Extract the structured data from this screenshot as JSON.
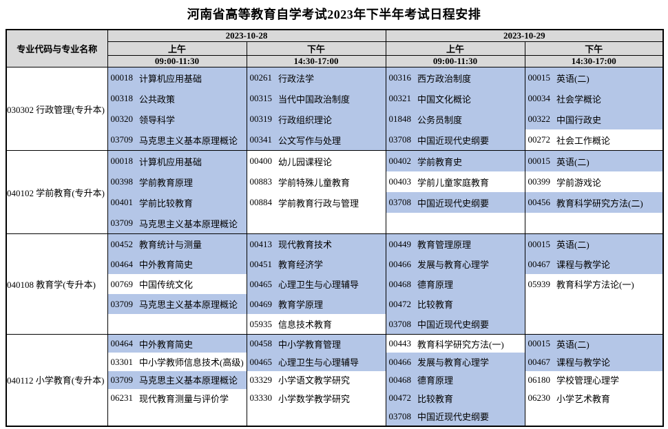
{
  "title": "河南省高等教育自学考试2023年下半年考试日程安排",
  "colors": {
    "highlight": "#b4c6e7",
    "header_bg": "#d9d9d9",
    "border": "#000000"
  },
  "table": {
    "corner_header": "专业代码与专业名称",
    "dates": [
      {
        "date": "2023-10-28",
        "sessions": [
          {
            "label": "上午",
            "time": "09:00-11:30"
          },
          {
            "label": "下午",
            "time": "14:30-17:00"
          }
        ]
      },
      {
        "date": "2023-10-29",
        "sessions": [
          {
            "label": "上午",
            "time": "09:00-11:30"
          },
          {
            "label": "下午",
            "time": "14:30-17:00"
          }
        ]
      }
    ],
    "rows": [
      {
        "major": "030302 行政管理(专升本)",
        "cells": [
          [
            {
              "code": "00018",
              "name": "计算机应用基础",
              "highlighted": true
            },
            {
              "code": "00318",
              "name": "公共政策",
              "highlighted": true
            },
            {
              "code": "00320",
              "name": "领导科学",
              "highlighted": true
            },
            {
              "code": "03709",
              "name": "马克思主义基本原理概论",
              "highlighted": true
            }
          ],
          [
            {
              "code": "00261",
              "name": "行政法学",
              "highlighted": true
            },
            {
              "code": "00315",
              "name": "当代中国政治制度",
              "highlighted": true
            },
            {
              "code": "00319",
              "name": "行政组织理论",
              "highlighted": true
            },
            {
              "code": "00341",
              "name": "公文写作与处理",
              "highlighted": true
            }
          ],
          [
            {
              "code": "00316",
              "name": "西方政治制度",
              "highlighted": true
            },
            {
              "code": "00321",
              "name": "中国文化概论",
              "highlighted": true
            },
            {
              "code": "01848",
              "name": "公务员制度",
              "highlighted": true
            },
            {
              "code": "03708",
              "name": "中国近现代史纲要",
              "highlighted": true
            }
          ],
          [
            {
              "code": "00015",
              "name": "英语(二)",
              "highlighted": true
            },
            {
              "code": "00034",
              "name": "社会学概论",
              "highlighted": true
            },
            {
              "code": "00322",
              "name": "中国行政史",
              "highlighted": true
            },
            {
              "code": "00272",
              "name": "社会工作概论",
              "highlighted": false
            }
          ]
        ]
      },
      {
        "major": "040102 学前教育(专升本)",
        "cells": [
          [
            {
              "code": "00018",
              "name": "计算机应用基础",
              "highlighted": true
            },
            {
              "code": "00398",
              "name": "学前教育原理",
              "highlighted": true
            },
            {
              "code": "00401",
              "name": "学前比较教育",
              "highlighted": true
            },
            {
              "code": "03709",
              "name": "马克思主义基本原理概论",
              "highlighted": true
            }
          ],
          [
            {
              "code": "00400",
              "name": "幼儿园课程论",
              "highlighted": false
            },
            {
              "code": "00883",
              "name": "学前特殊儿童教育",
              "highlighted": false
            },
            {
              "code": "00884",
              "name": "学前教育行政与管理",
              "highlighted": false
            }
          ],
          [
            {
              "code": "00402",
              "name": "学前教育史",
              "highlighted": true
            },
            {
              "code": "00403",
              "name": "学前儿童家庭教育",
              "highlighted": false
            },
            {
              "code": "03708",
              "name": "中国近现代史纲要",
              "highlighted": true
            }
          ],
          [
            {
              "code": "00015",
              "name": "英语(二)",
              "highlighted": true
            },
            {
              "code": "00399",
              "name": "学前游戏论",
              "highlighted": false
            },
            {
              "code": "00456",
              "name": "教育科学研究方法(二)",
              "highlighted": true
            }
          ]
        ]
      },
      {
        "major": "040108 教育学(专升本)",
        "cells": [
          [
            {
              "code": "00452",
              "name": "教育统计与测量",
              "highlighted": true
            },
            {
              "code": "00464",
              "name": "中外教育简史",
              "highlighted": true
            },
            {
              "code": "00769",
              "name": "中国传统文化",
              "highlighted": false
            },
            {
              "code": "03709",
              "name": "马克思主义基本原理概论",
              "highlighted": true
            }
          ],
          [
            {
              "code": "00413",
              "name": "现代教育技术",
              "highlighted": true
            },
            {
              "code": "00451",
              "name": "教育经济学",
              "highlighted": true
            },
            {
              "code": "00465",
              "name": "心理卫生与心理辅导",
              "highlighted": true
            },
            {
              "code": "00469",
              "name": "教育学原理",
              "highlighted": true
            },
            {
              "code": "05935",
              "name": "信息技术教育",
              "highlighted": false
            }
          ],
          [
            {
              "code": "00449",
              "name": "教育管理原理",
              "highlighted": true
            },
            {
              "code": "00466",
              "name": "发展与教育心理学",
              "highlighted": true
            },
            {
              "code": "00468",
              "name": "德育原理",
              "highlighted": true
            },
            {
              "code": "00472",
              "name": "比较教育",
              "highlighted": true
            },
            {
              "code": "03708",
              "name": "中国近现代史纲要",
              "highlighted": true
            }
          ],
          [
            {
              "code": "00015",
              "name": "英语(二)",
              "highlighted": true
            },
            {
              "code": "00467",
              "name": "课程与教学论",
              "highlighted": true
            },
            {
              "code": "05939",
              "name": "教育科学方法论(一)",
              "highlighted": false
            }
          ]
        ]
      },
      {
        "major": "040112 小学教育(专升本)",
        "cells": [
          [
            {
              "code": "00464",
              "name": "中外教育简史",
              "highlighted": true
            },
            {
              "code": "03301",
              "name": "中小学教师信息技术(高级)",
              "highlighted": false
            },
            {
              "code": "03709",
              "name": "马克思主义基本原理概论",
              "highlighted": true
            },
            {
              "code": "06231",
              "name": "现代教育测量与评价学",
              "highlighted": false
            }
          ],
          [
            {
              "code": "00458",
              "name": "中小学教育管理",
              "highlighted": true
            },
            {
              "code": "00465",
              "name": "心理卫生与心理辅导",
              "highlighted": true
            },
            {
              "code": "03329",
              "name": "小学语文教学研究",
              "highlighted": false
            },
            {
              "code": "03330",
              "name": "小学数学教学研究",
              "highlighted": false
            }
          ],
          [
            {
              "code": "00443",
              "name": "教育科学研究方法(一)",
              "highlighted": false
            },
            {
              "code": "00466",
              "name": "发展与教育心理学",
              "highlighted": true
            },
            {
              "code": "00468",
              "name": "德育原理",
              "highlighted": true
            },
            {
              "code": "00472",
              "name": "比较教育",
              "highlighted": true
            },
            {
              "code": "03708",
              "name": "中国近现代史纲要",
              "highlighted": true
            }
          ],
          [
            {
              "code": "00015",
              "name": "英语(二)",
              "highlighted": true
            },
            {
              "code": "00467",
              "name": "课程与教学论",
              "highlighted": true
            },
            {
              "code": "06180",
              "name": "学校管理心理学",
              "highlighted": false
            },
            {
              "code": "06230",
              "name": "小学艺术教育",
              "highlighted": false
            }
          ]
        ]
      }
    ]
  }
}
